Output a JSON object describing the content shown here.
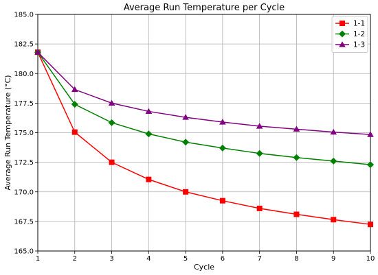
{
  "chart_data": {
    "type": "line",
    "title": "Average Run Temperature per Cycle",
    "xlabel": "Cycle",
    "ylabel": "Average Run Temperature (°C)",
    "x": [
      1,
      2,
      3,
      4,
      5,
      6,
      7,
      8,
      9,
      10
    ],
    "xlim": [
      1,
      10
    ],
    "ylim": [
      165.0,
      185.0
    ],
    "xticks": [
      1,
      2,
      3,
      4,
      5,
      6,
      7,
      8,
      9,
      10
    ],
    "yticks": [
      165.0,
      167.5,
      170.0,
      172.5,
      175.0,
      177.5,
      180.0,
      182.5,
      185.0
    ],
    "ytick_labels": [
      "165.0",
      "167.5",
      "170.0",
      "172.5",
      "175.0",
      "177.5",
      "180.0",
      "182.5",
      "185.0"
    ],
    "grid": true,
    "legend_position": "top-right",
    "series": [
      {
        "name": "1-1",
        "color": "#ff0000",
        "marker": "square",
        "values": [
          181.8,
          175.05,
          172.5,
          171.05,
          170.0,
          169.25,
          168.6,
          168.1,
          167.65,
          167.25
        ]
      },
      {
        "name": "1-2",
        "color": "#008000",
        "marker": "diamond",
        "values": [
          181.8,
          177.4,
          175.85,
          174.9,
          174.2,
          173.7,
          173.25,
          172.9,
          172.6,
          172.3
        ]
      },
      {
        "name": "1-3",
        "color": "#800080",
        "marker": "triangle",
        "values": [
          181.8,
          178.65,
          177.5,
          176.8,
          176.3,
          175.9,
          175.55,
          175.3,
          175.05,
          174.85
        ]
      }
    ]
  }
}
